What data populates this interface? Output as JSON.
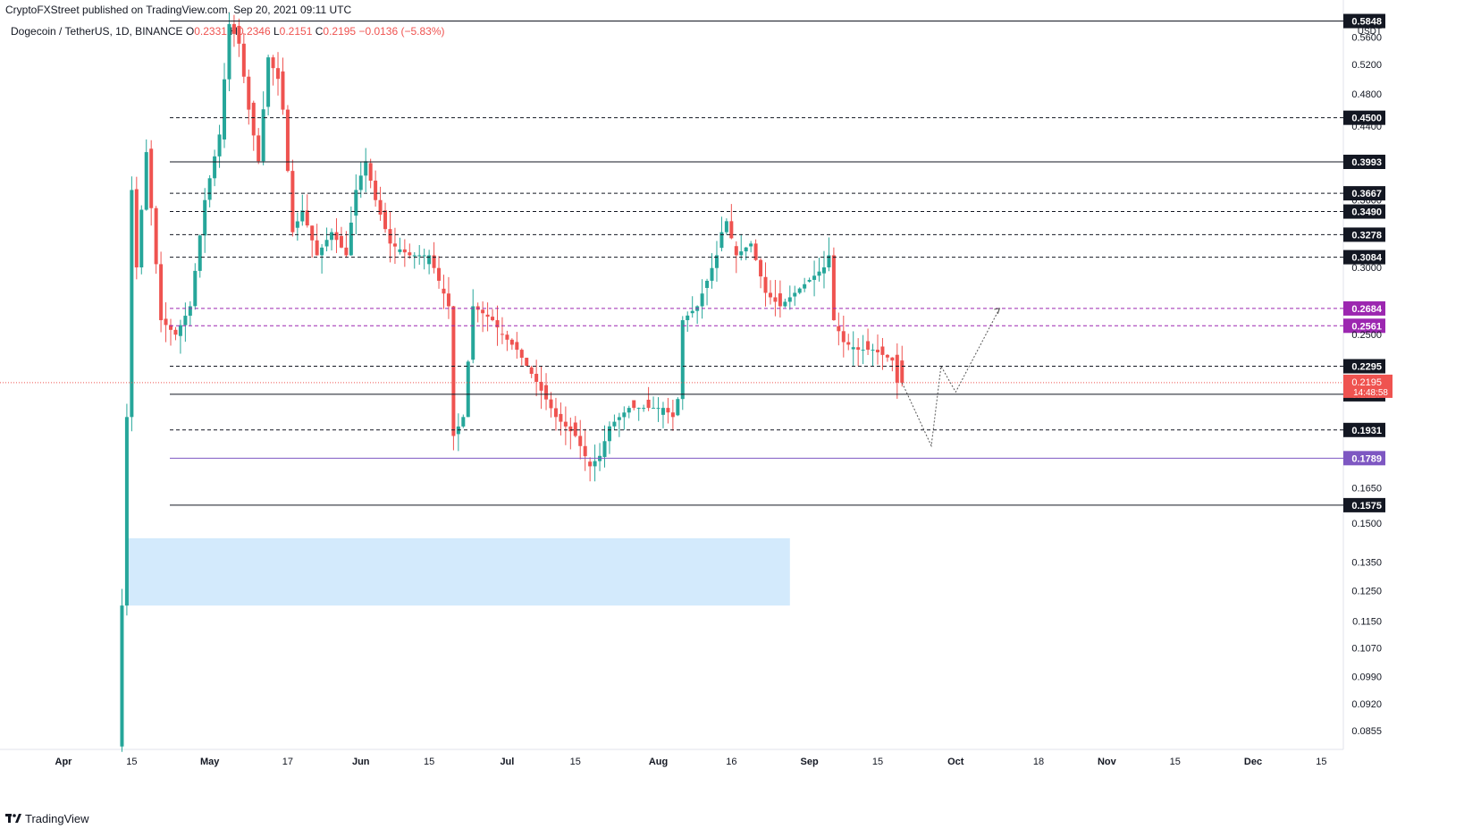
{
  "header": {
    "publisher_text": "CryptoFXStreet published on TradingView.com, Sep 20, 2021 09:11 UTC"
  },
  "symbol": {
    "name": "Dogecoin / TetherUS, 1D, BINANCE",
    "open_label": "O",
    "open": "0.2331",
    "high_label": "H",
    "high": "0.2346",
    "low_label": "L",
    "low": "0.2151",
    "close_label": "C",
    "close": "0.2195",
    "change": "−0.0136 (−5.83%)"
  },
  "footer": {
    "brand": "TradingView"
  },
  "chart_data": {
    "type": "candlestick",
    "price_axis": {
      "currency": "USDT",
      "ticks": [
        0.56,
        0.52,
        0.48,
        0.44,
        0.36,
        0.3,
        0.25,
        0.165,
        0.15,
        0.135,
        0.125,
        0.115,
        0.107,
        0.099,
        0.092,
        0.0855
      ],
      "range": [
        0.081,
        0.63
      ]
    },
    "time_axis": {
      "ticks": [
        "Apr",
        "15",
        "May",
        "17",
        "Jun",
        "15",
        "Jul",
        "15",
        "Aug",
        "16",
        "Sep",
        "15",
        "Oct",
        "18",
        "Nov",
        "15",
        "Dec",
        "15"
      ]
    },
    "current_price": {
      "value": 0.2195,
      "countdown": "14:48:58"
    },
    "levels": [
      {
        "value": 0.5848,
        "label": "0.5848",
        "style": "solid",
        "color": "#131722"
      },
      {
        "value": 0.45,
        "label": "0.4500",
        "style": "dashed",
        "color": "#131722"
      },
      {
        "value": 0.3993,
        "label": "0.3993",
        "style": "solid",
        "color": "#131722"
      },
      {
        "value": 0.3667,
        "label": "0.3667",
        "style": "dashed",
        "color": "#131722"
      },
      {
        "value": 0.349,
        "label": "0.3490",
        "style": "dashed",
        "color": "#131722"
      },
      {
        "value": 0.3278,
        "label": "0.3278",
        "style": "dashed",
        "color": "#131722"
      },
      {
        "value": 0.3084,
        "label": "0.3084",
        "style": "dashed",
        "color": "#131722"
      },
      {
        "value": 0.2684,
        "label": "0.2684",
        "style": "dashed",
        "color": "#9c27b0"
      },
      {
        "value": 0.2561,
        "label": "0.2561",
        "style": "dashed",
        "color": "#9c27b0"
      },
      {
        "value": 0.2295,
        "label": "0.2295",
        "style": "dashed",
        "color": "#131722"
      },
      {
        "value": 0.2127,
        "label": "0.2127",
        "style": "solid",
        "color": "#131722"
      },
      {
        "value": 0.1931,
        "label": "0.1931",
        "style": "dashed",
        "color": "#131722"
      },
      {
        "value": 0.1789,
        "label": "0.1789",
        "style": "solid",
        "color": "#7e57c2"
      },
      {
        "value": 0.1575,
        "label": "0.1575",
        "style": "solid",
        "color": "#131722"
      }
    ],
    "demand_zone": {
      "low": 0.12,
      "high": 0.144,
      "color": "#bbdefb"
    },
    "projection_path": [
      {
        "date": "2021-09-20",
        "price": 0.2195
      },
      {
        "date": "2021-09-26",
        "price": 0.185
      },
      {
        "date": "2021-09-28",
        "price": 0.2295
      },
      {
        "date": "2021-10-01",
        "price": 0.214
      },
      {
        "date": "2021-10-10",
        "price": 0.2684
      }
    ],
    "colors": {
      "up": "#26a69a",
      "down": "#ef5350"
    }
  }
}
